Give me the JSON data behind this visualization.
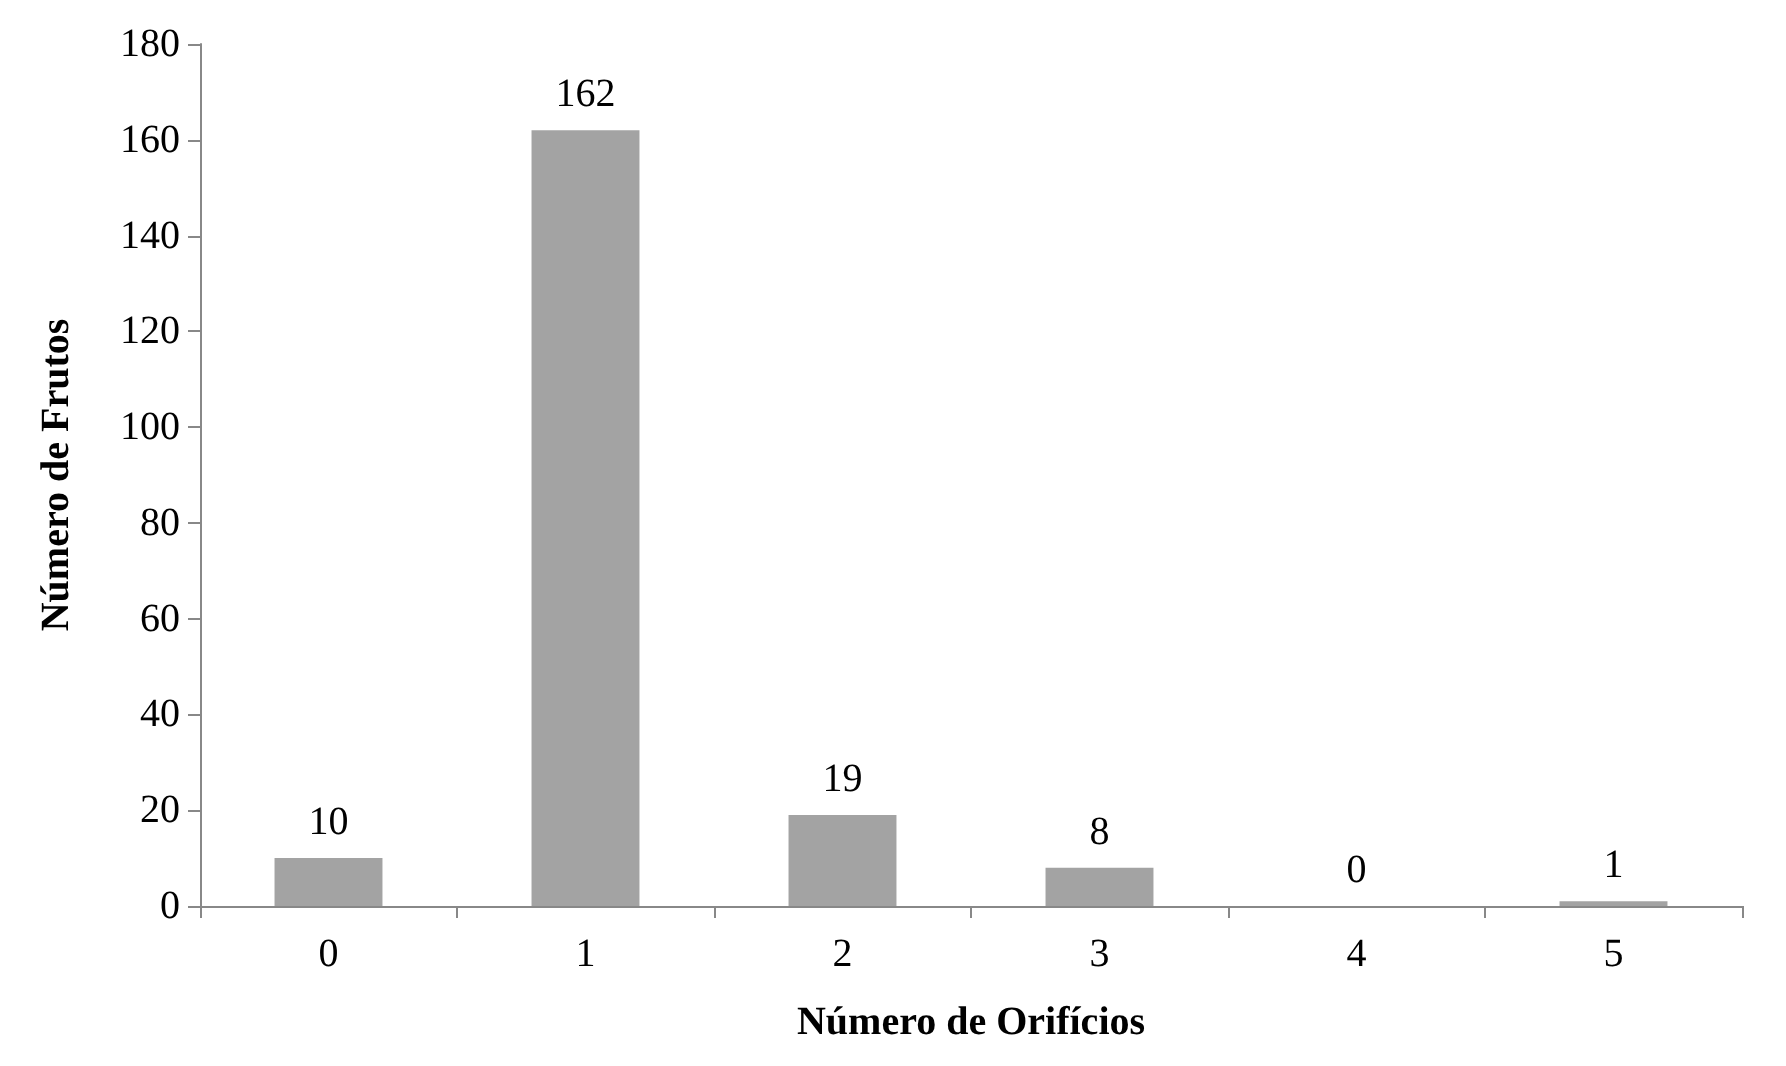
{
  "chart_data": {
    "type": "bar",
    "xlabel": "Número de Orifícios",
    "ylabel": "Número de Frutos",
    "categories": [
      "0",
      "1",
      "2",
      "3",
      "4",
      "5"
    ],
    "values": [
      10,
      162,
      19,
      8,
      0,
      1
    ],
    "color": "#a3a3a3",
    "ylim": [
      0,
      180
    ],
    "yticks": [
      0,
      20,
      40,
      60,
      80,
      100,
      120,
      140,
      160,
      180
    ],
    "grid": false,
    "data_labels": true
  }
}
